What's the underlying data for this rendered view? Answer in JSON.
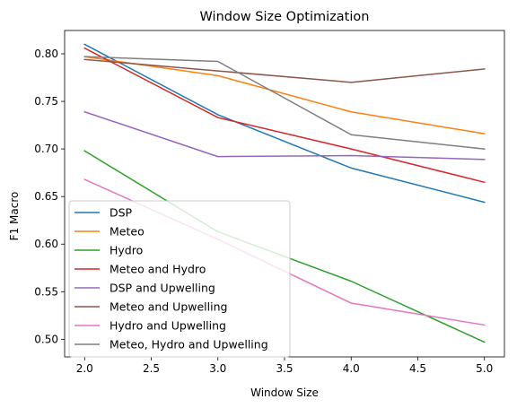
{
  "chart_data": {
    "type": "line",
    "title": "Window Size Optimization",
    "xlabel": "Window Size",
    "ylabel": "F1 Macro",
    "x": [
      2.0,
      3.0,
      4.0,
      5.0
    ],
    "xlim": [
      1.85,
      5.15
    ],
    "ylim": [
      0.4815,
      0.8245
    ],
    "xticks": [
      2.0,
      2.5,
      3.0,
      3.5,
      4.0,
      4.5,
      5.0
    ],
    "xtick_labels": [
      "2.0",
      "2.5",
      "3.0",
      "3.5",
      "4.0",
      "4.5",
      "5.0"
    ],
    "yticks": [
      0.5,
      0.55,
      0.6,
      0.65,
      0.7,
      0.75,
      0.8
    ],
    "ytick_labels": [
      "0.50",
      "0.55",
      "0.60",
      "0.65",
      "0.70",
      "0.75",
      "0.80"
    ],
    "grid": false,
    "legend_position": "lower-left",
    "series": [
      {
        "name": "DSP",
        "color": "#1f77b4",
        "values": [
          0.81,
          0.736,
          0.68,
          0.644
        ]
      },
      {
        "name": "Meteo",
        "color": "#ff7f0e",
        "values": [
          0.797,
          0.777,
          0.739,
          0.716
        ]
      },
      {
        "name": "Hydro",
        "color": "#2ca02c",
        "values": [
          0.698,
          0.613,
          0.561,
          0.497
        ]
      },
      {
        "name": "Meteo and Hydro",
        "color": "#d62728",
        "values": [
          0.806,
          0.733,
          0.7,
          0.665
        ]
      },
      {
        "name": "DSP and Upwelling",
        "color": "#9467bd",
        "values": [
          0.739,
          0.692,
          0.693,
          0.689
        ]
      },
      {
        "name": "Meteo and Upwelling",
        "color": "#8c564b",
        "values": [
          0.794,
          0.782,
          0.77,
          0.784
        ]
      },
      {
        "name": "Hydro and Upwelling",
        "color": "#e377c2",
        "values": [
          0.668,
          0.605,
          0.538,
          0.515
        ]
      },
      {
        "name": "Meteo, Hydro and Upwelling",
        "color": "#7f7f7f",
        "values": [
          0.797,
          0.792,
          0.715,
          0.7
        ]
      }
    ]
  }
}
